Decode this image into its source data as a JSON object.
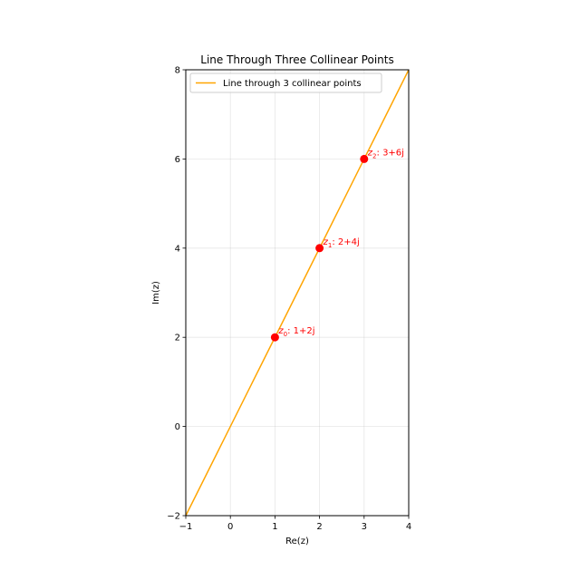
{
  "chart_data": {
    "type": "line",
    "title": "Line Through Three Collinear Points",
    "xlabel": "Re(z)",
    "ylabel": "Im(z)",
    "xlim": [
      -1,
      4
    ],
    "ylim": [
      -2,
      8
    ],
    "xticks": [
      -1,
      0,
      1,
      2,
      3,
      4
    ],
    "yticks": [
      -2,
      0,
      2,
      4,
      6,
      8
    ],
    "grid": true,
    "legend": {
      "placement": "top-left"
    },
    "colors": {
      "line": "#ffa500",
      "points": "#ff0000"
    },
    "series": [
      {
        "name": "Line through 3 collinear points",
        "x": [
          -1,
          4
        ],
        "y": [
          -2,
          8
        ]
      }
    ],
    "points": [
      {
        "sym": "z",
        "sub": "0",
        "rest": ": 1+2j",
        "x": 1,
        "y": 2
      },
      {
        "sym": "z",
        "sub": "1",
        "rest": ": 2+4j",
        "x": 2,
        "y": 4
      },
      {
        "sym": "z",
        "sub": "2",
        "rest": ": 3+6j",
        "x": 3,
        "y": 6
      }
    ]
  }
}
